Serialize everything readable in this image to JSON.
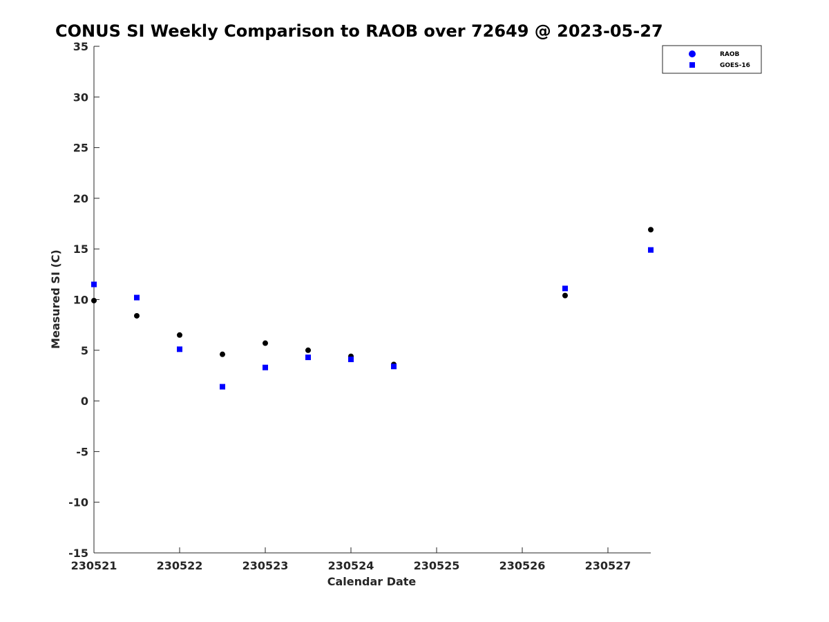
{
  "chart_data": {
    "type": "scatter",
    "title": "CONUS SI Weekly Comparison to RAOB over 72649 @ 2023-05-27",
    "xlabel": "Calendar Date",
    "ylabel": "Measured SI (C)",
    "xlim": [
      0,
      6.5
    ],
    "ylim": [
      -15,
      35
    ],
    "x_ticks": [
      {
        "value": 0,
        "label": "230521"
      },
      {
        "value": 1,
        "label": "230522"
      },
      {
        "value": 2,
        "label": "230523"
      },
      {
        "value": 3,
        "label": "230524"
      },
      {
        "value": 4,
        "label": "230525"
      },
      {
        "value": 5,
        "label": "230526"
      },
      {
        "value": 6,
        "label": "230527"
      }
    ],
    "y_ticks": [
      {
        "value": 35,
        "label": "35"
      },
      {
        "value": 30,
        "label": "30"
      },
      {
        "value": 25,
        "label": "25"
      },
      {
        "value": 20,
        "label": "20"
      },
      {
        "value": 15,
        "label": "15"
      },
      {
        "value": 10,
        "label": "10"
      },
      {
        "value": 5,
        "label": "5"
      },
      {
        "value": 0,
        "label": "0"
      },
      {
        "value": -5,
        "label": "-5"
      },
      {
        "value": -10,
        "label": "-10"
      },
      {
        "value": -15,
        "label": "-15"
      }
    ],
    "grid": false,
    "legend_position": "top-right",
    "series": [
      {
        "name": "RAOB",
        "marker": "circle",
        "color": "#000000",
        "legend_color": "#0000ff",
        "points": [
          {
            "x": 0.0,
            "y": 9.9
          },
          {
            "x": 0.5,
            "y": 8.4
          },
          {
            "x": 1.0,
            "y": 6.5
          },
          {
            "x": 1.5,
            "y": 4.6
          },
          {
            "x": 2.0,
            "y": 5.7
          },
          {
            "x": 2.5,
            "y": 5.0
          },
          {
            "x": 3.0,
            "y": 4.4
          },
          {
            "x": 3.5,
            "y": 3.6
          },
          {
            "x": 5.5,
            "y": 10.4
          },
          {
            "x": 6.5,
            "y": 16.9
          }
        ]
      },
      {
        "name": "GOES-16",
        "marker": "square",
        "color": "#0000ff",
        "legend_color": "#0000ff",
        "points": [
          {
            "x": 0.0,
            "y": 11.5
          },
          {
            "x": 0.5,
            "y": 10.2
          },
          {
            "x": 1.0,
            "y": 5.1
          },
          {
            "x": 1.5,
            "y": 1.4
          },
          {
            "x": 2.0,
            "y": 3.3
          },
          {
            "x": 2.5,
            "y": 4.3
          },
          {
            "x": 3.0,
            "y": 4.1
          },
          {
            "x": 3.5,
            "y": 3.4
          },
          {
            "x": 5.5,
            "y": 11.1
          },
          {
            "x": 6.5,
            "y": 14.9
          }
        ]
      }
    ]
  }
}
